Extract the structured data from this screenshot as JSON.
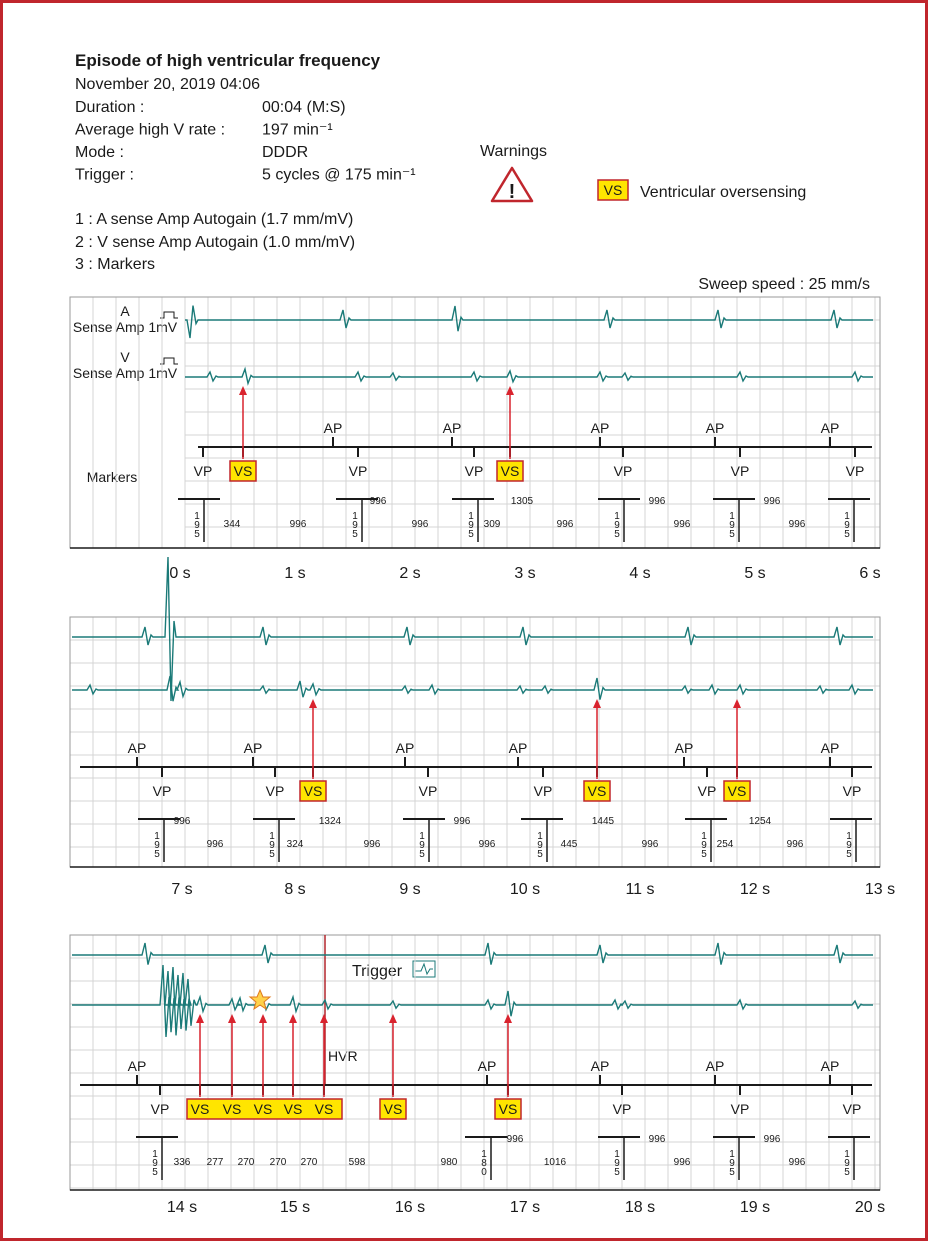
{
  "header": {
    "title": "Episode of high ventricular frequency",
    "date": "November 20, 2019 04:06",
    "fields": [
      {
        "label": "Duration :",
        "value": "00:04 (M:S)"
      },
      {
        "label": "Average high V rate :",
        "value": "197 min⁻¹"
      },
      {
        "label": "Mode :",
        "value": "DDDR"
      },
      {
        "label": "Trigger :",
        "value": "5 cycles @ 175 min⁻¹"
      }
    ]
  },
  "warnings": {
    "title": "Warnings",
    "marker": "VS",
    "text": "Ventricular oversensing"
  },
  "channels": [
    "1 : A sense Amp Autogain (1.7 mm/mV)",
    "2 : V sense Amp Autogain (1.0 mm/mV)",
    "3 : Markers"
  ],
  "sweep_speed": "Sweep speed : 25 mm/s",
  "channel_labels": {
    "a": "A",
    "a_sub": "Sense Amp 1mV",
    "v": "V",
    "v_sub": "Sense Amp 1mV",
    "markers": "Markers"
  },
  "annotations": {
    "trigger": "Trigger",
    "hvr": "HVR"
  },
  "strips": [
    {
      "times": [
        "0 s",
        "1 s",
        "2 s",
        "3 s",
        "4 s",
        "5 s",
        "6 s"
      ],
      "markers": [
        "VP",
        "VS",
        "AP",
        "VP",
        "AP",
        "VP",
        "VS",
        "AP",
        "VP",
        "AP",
        "VP",
        "AP",
        "VP"
      ],
      "counters": [
        "195",
        "195",
        "195",
        "195",
        "195",
        "195"
      ],
      "intervals": [
        "344",
        "996",
        "996",
        "996",
        "309",
        "1305",
        "996",
        "996",
        "996",
        "996",
        "996"
      ]
    },
    {
      "times": [
        "7 s",
        "8 s",
        "9 s",
        "10 s",
        "11 s",
        "12 s",
        "13 s"
      ],
      "markers": [
        "AP",
        "VP",
        "AP",
        "VP",
        "VS",
        "AP",
        "VP",
        "AP",
        "VP",
        "VS",
        "AP",
        "VP",
        "VS",
        "AP",
        "VP"
      ],
      "counters": [
        "195",
        "195",
        "195",
        "195",
        "195",
        "195"
      ],
      "intervals": [
        "996",
        "996",
        "1324",
        "324",
        "996",
        "996",
        "996",
        "1445",
        "445",
        "996",
        "1254",
        "254",
        "996"
      ]
    },
    {
      "times": [
        "14 s",
        "15 s",
        "16 s",
        "17 s",
        "18 s",
        "19 s",
        "20 s"
      ],
      "markers": [
        "AP",
        "VP",
        "VS",
        "VS",
        "VS",
        "VS",
        "VS",
        "VS",
        "AP",
        "VS",
        "AP",
        "VP",
        "AP",
        "VP",
        "AP",
        "VP"
      ],
      "counters": [
        "195",
        "180",
        "195",
        "195",
        "195"
      ],
      "intervals": [
        "336",
        "277",
        "270",
        "270",
        "270",
        "598",
        "980",
        "996",
        "1016",
        "996",
        "996",
        "996",
        "996"
      ]
    }
  ]
}
